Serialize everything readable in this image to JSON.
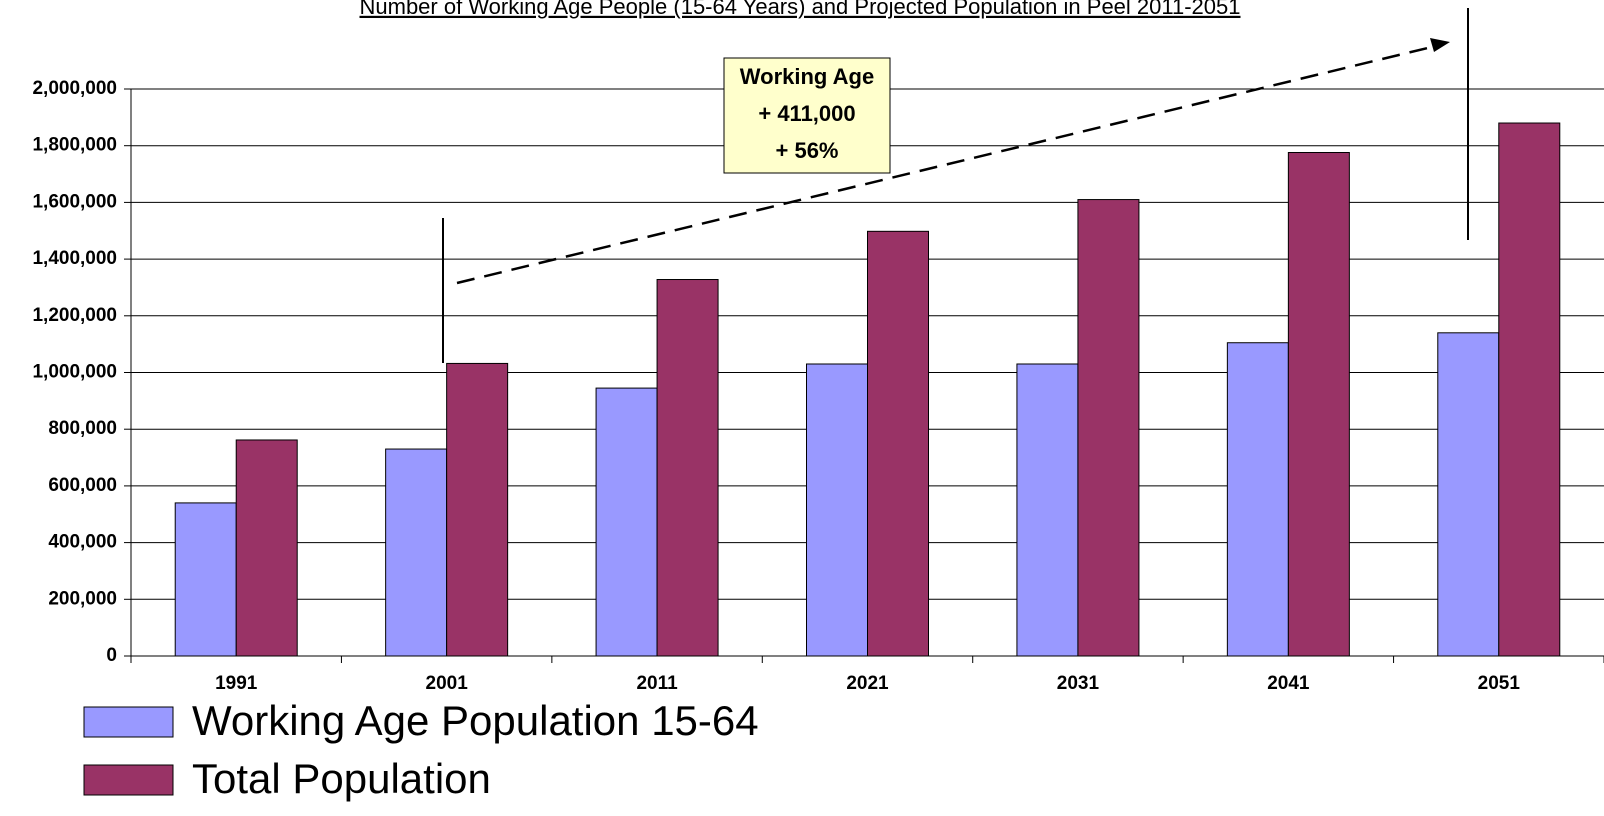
{
  "chart_data": {
    "type": "bar",
    "title": "Number of Working Age People (15-64 Years) and Projected Population in Peel 2011-2051",
    "categories": [
      "1991",
      "2001",
      "2011",
      "2021",
      "2031",
      "2041",
      "2051"
    ],
    "series": [
      {
        "name": "Working Age Population 15-64",
        "color": "#9999ff",
        "values": [
          540000,
          730000,
          945000,
          1030000,
          1030000,
          1105000,
          1140000
        ]
      },
      {
        "name": "Total Population",
        "color": "#993366",
        "values": [
          762000,
          1032000,
          1328000,
          1498000,
          1610000,
          1776000,
          1880000
        ]
      }
    ],
    "ylim": [
      0,
      2000000
    ],
    "yticks": [
      0,
      {
        "value": 200000,
        "label": "200,000"
      },
      {
        "value": 400000,
        "label": "400,000"
      },
      {
        "value": 600000,
        "label": "600,000"
      },
      {
        "value": 800000,
        "label": "800,000"
      },
      {
        "value": 1000000,
        "label": "1,000,000"
      },
      {
        "value": 1200000,
        "label": "1,200,000"
      },
      {
        "value": 1400000,
        "label": "1,400,000"
      },
      {
        "value": 1600000,
        "label": "1,600,000"
      },
      {
        "value": 1800000,
        "label": "1,800,000"
      },
      {
        "value": 2000000,
        "label": "2,000,000"
      }
    ],
    "grid": true,
    "legend": "bottom-left",
    "annotation": [
      "Working Age",
      "+ 411,000",
      "+ 56%"
    ]
  }
}
